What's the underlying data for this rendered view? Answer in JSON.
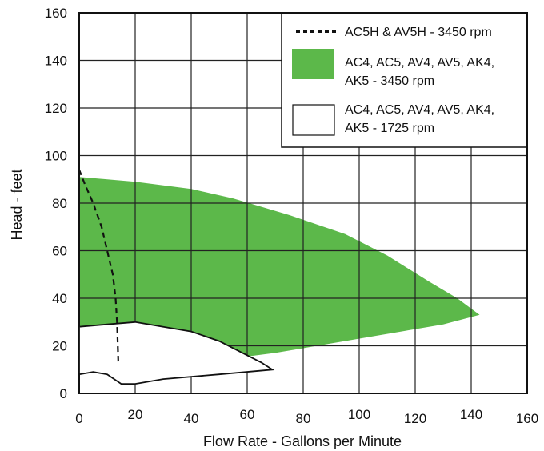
{
  "chart_data": {
    "type": "area",
    "xlabel": "Flow Rate - Gallons per Minute",
    "ylabel": "Head - feet",
    "xlim": [
      0,
      160
    ],
    "ylim": [
      0,
      160
    ],
    "x_ticks": [
      "0",
      "20",
      "40",
      "60",
      "80",
      "100",
      "120",
      "140",
      "160"
    ],
    "y_ticks": [
      "0",
      "20",
      "40",
      "60",
      "80",
      "100",
      "120",
      "140",
      "160"
    ],
    "grid": true,
    "legend_position": "top-right",
    "series": [
      {
        "name": "AC4, AC5, AV4, AV5, AK4, AK5 - 3450 rpm",
        "legend_lines": [
          "AC4, AC5, AV4, AV5, AK4,",
          "AK5 - 3450 rpm"
        ],
        "style": "filled",
        "color": "#5cb84a",
        "points": [
          [
            0,
            91
          ],
          [
            20,
            89
          ],
          [
            40,
            86
          ],
          [
            55,
            82
          ],
          [
            75,
            75
          ],
          [
            95,
            67
          ],
          [
            110,
            58
          ],
          [
            125,
            47
          ],
          [
            135,
            40
          ],
          [
            143,
            33
          ],
          [
            130,
            29
          ],
          [
            110,
            25
          ],
          [
            90,
            21
          ],
          [
            70,
            17
          ],
          [
            50,
            14
          ],
          [
            35,
            18
          ],
          [
            20,
            23
          ],
          [
            10,
            26
          ],
          [
            0,
            28
          ]
        ]
      },
      {
        "name": "AC4, AC5, AV4, AV5, AK4, AK5 - 1725 rpm",
        "legend_lines": [
          "AC4, AC5, AV4, AV5, AK4,",
          "AK5 - 1725 rpm"
        ],
        "style": "outlined",
        "color": "#ffffff",
        "points": [
          [
            0,
            28
          ],
          [
            10,
            29
          ],
          [
            20,
            30
          ],
          [
            30,
            28
          ],
          [
            40,
            26
          ],
          [
            50,
            22
          ],
          [
            60,
            16
          ],
          [
            65,
            13
          ],
          [
            69,
            10
          ],
          [
            50,
            8
          ],
          [
            30,
            6
          ],
          [
            20,
            4
          ],
          [
            15,
            4
          ],
          [
            10,
            8
          ],
          [
            5,
            9
          ],
          [
            0,
            8
          ]
        ]
      },
      {
        "name": "AC5H & AV5H - 3450 rpm",
        "legend_lines": [
          "AC5H & AV5H - 3450 rpm"
        ],
        "style": "dashed",
        "color": "#111111",
        "points": [
          [
            0,
            94
          ],
          [
            2,
            88
          ],
          [
            5,
            80
          ],
          [
            8,
            70
          ],
          [
            10,
            60
          ],
          [
            12,
            50
          ],
          [
            13,
            40
          ],
          [
            13.5,
            30
          ],
          [
            14,
            12
          ]
        ]
      }
    ]
  }
}
